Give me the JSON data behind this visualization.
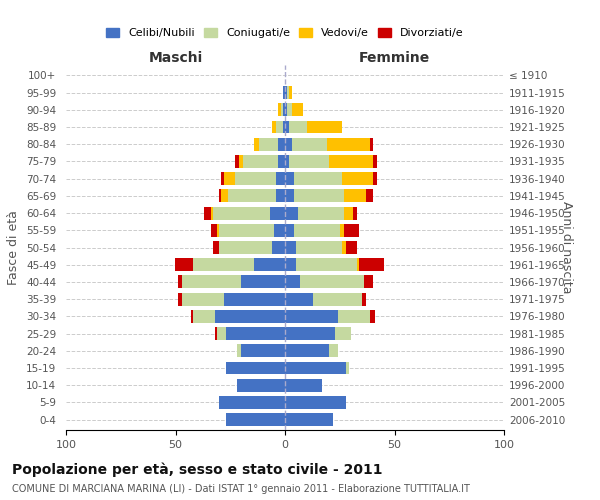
{
  "age_groups": [
    "0-4",
    "5-9",
    "10-14",
    "15-19",
    "20-24",
    "25-29",
    "30-34",
    "35-39",
    "40-44",
    "45-49",
    "50-54",
    "55-59",
    "60-64",
    "65-69",
    "70-74",
    "75-79",
    "80-84",
    "85-89",
    "90-94",
    "95-99",
    "100+"
  ],
  "birth_years": [
    "2006-2010",
    "2001-2005",
    "1996-2000",
    "1991-1995",
    "1986-1990",
    "1981-1985",
    "1976-1980",
    "1971-1975",
    "1966-1970",
    "1961-1965",
    "1956-1960",
    "1951-1955",
    "1946-1950",
    "1941-1945",
    "1936-1940",
    "1931-1935",
    "1926-1930",
    "1921-1925",
    "1916-1920",
    "1911-1915",
    "≤ 1910"
  ],
  "maschi": {
    "celibi": [
      27,
      30,
      22,
      27,
      20,
      27,
      32,
      28,
      20,
      14,
      6,
      5,
      7,
      4,
      4,
      3,
      3,
      1,
      1,
      1,
      0
    ],
    "coniugati": [
      0,
      0,
      0,
      0,
      2,
      4,
      10,
      19,
      27,
      28,
      24,
      25,
      26,
      22,
      19,
      16,
      9,
      3,
      1,
      0,
      0
    ],
    "vedovi": [
      0,
      0,
      0,
      0,
      0,
      0,
      0,
      0,
      0,
      0,
      0,
      1,
      1,
      3,
      5,
      2,
      2,
      2,
      1,
      0,
      0
    ],
    "divorziati": [
      0,
      0,
      0,
      0,
      0,
      1,
      1,
      2,
      2,
      8,
      3,
      3,
      3,
      1,
      1,
      2,
      0,
      0,
      0,
      0,
      0
    ]
  },
  "femmine": {
    "nubili": [
      22,
      28,
      17,
      28,
      20,
      23,
      24,
      13,
      7,
      5,
      5,
      4,
      6,
      4,
      4,
      2,
      3,
      2,
      1,
      1,
      0
    ],
    "coniugate": [
      0,
      0,
      0,
      1,
      4,
      7,
      15,
      22,
      29,
      28,
      21,
      21,
      21,
      23,
      22,
      18,
      16,
      8,
      2,
      1,
      0
    ],
    "vedove": [
      0,
      0,
      0,
      0,
      0,
      0,
      0,
      0,
      0,
      1,
      2,
      2,
      4,
      10,
      14,
      20,
      20,
      16,
      5,
      1,
      0
    ],
    "divorziate": [
      0,
      0,
      0,
      0,
      0,
      0,
      2,
      2,
      4,
      11,
      5,
      7,
      2,
      3,
      2,
      2,
      1,
      0,
      0,
      0,
      0
    ]
  },
  "colors": {
    "celibi": "#4472c4",
    "coniugati": "#c5d9a0",
    "vedovi": "#ffc000",
    "divorziati": "#cc0000"
  },
  "xlim": 100,
  "title": "Popolazione per età, sesso e stato civile - 2011",
  "subtitle": "COMUNE DI MARCIANA MARINA (LI) - Dati ISTAT 1° gennaio 2011 - Elaborazione TUTTITALIA.IT",
  "ylabel_left": "Fasce di età",
  "ylabel_right": "Anni di nascita",
  "xlabel_left": "Maschi",
  "xlabel_right": "Femmine"
}
